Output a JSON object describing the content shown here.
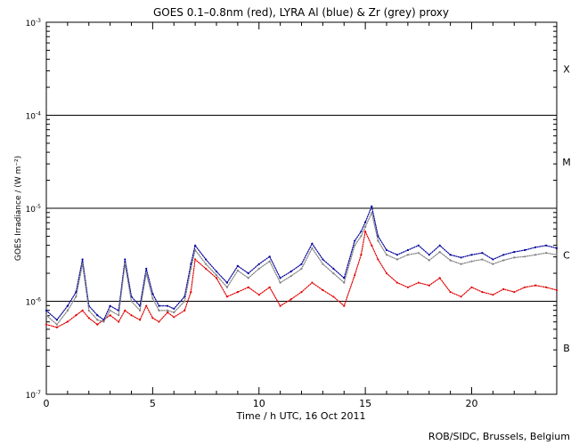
{
  "chart_data": {
    "type": "line",
    "title": "GOES 0.1–0.8nm (red), LYRA Al (blue) & Zr (grey) proxy",
    "xlabel": "Time / h UTC, 16 Oct 2011",
    "ylabel": "GOES Irradiance / (W m⁻²)",
    "credit": "ROB/SIDC, Brussels, Belgium",
    "xlim": [
      0,
      24
    ],
    "ylim_log10": [
      -7,
      -3
    ],
    "y_scale": "log",
    "grid": false,
    "x_ticks": [
      {
        "v": 0,
        "label": "0"
      },
      {
        "v": 5,
        "label": "5"
      },
      {
        "v": 10,
        "label": "10"
      },
      {
        "v": 15,
        "label": "15"
      },
      {
        "v": 20,
        "label": "20"
      }
    ],
    "y_ticks": [
      {
        "e": -7,
        "base": "10",
        "exp": "-7"
      },
      {
        "e": -6,
        "base": "10",
        "exp": "-6"
      },
      {
        "e": -5,
        "base": "10",
        "exp": "-5"
      },
      {
        "e": -4,
        "base": "10",
        "exp": "-4"
      },
      {
        "e": -3,
        "base": "10",
        "exp": "-3"
      }
    ],
    "class_lines": [
      -6,
      -5,
      -4
    ],
    "class_labels": [
      {
        "label": "X",
        "logy": -3.5
      },
      {
        "label": "M",
        "logy": -4.5
      },
      {
        "label": "C",
        "logy": -5.5
      },
      {
        "label": "B",
        "logy": -6.5
      }
    ],
    "series": [
      {
        "color": "#e00000",
        "x": [
          0,
          0.5,
          1,
          1.4,
          1.7,
          2,
          2.4,
          2.7,
          3,
          3.4,
          3.7,
          4,
          4.4,
          4.7,
          5,
          5.3,
          5.7,
          6,
          6.5,
          6.8,
          7,
          7.5,
          8,
          8.5,
          9,
          9.5,
          10,
          10.5,
          11,
          11.5,
          12,
          12.5,
          13,
          13.5,
          14,
          14.5,
          14.8,
          15,
          15.3,
          15.6,
          16,
          16.5,
          17,
          17.5,
          18,
          18.5,
          19,
          19.5,
          20,
          20.5,
          21,
          21.5,
          22,
          22.5,
          23,
          23.5,
          24
        ],
        "logy": [
          -6.25,
          -6.28,
          -6.22,
          -6.15,
          -6.1,
          -6.18,
          -6.25,
          -6.2,
          -6.15,
          -6.22,
          -6.1,
          -6.15,
          -6.2,
          -6.05,
          -6.18,
          -6.22,
          -6.12,
          -6.17,
          -6.1,
          -5.9,
          -5.55,
          -5.65,
          -5.75,
          -5.95,
          -5.9,
          -5.85,
          -5.93,
          -5.85,
          -6.05,
          -5.98,
          -5.9,
          -5.8,
          -5.88,
          -5.95,
          -6.05,
          -5.72,
          -5.5,
          -5.25,
          -5.4,
          -5.55,
          -5.7,
          -5.8,
          -5.85,
          -5.8,
          -5.83,
          -5.75,
          -5.9,
          -5.95,
          -5.85,
          -5.9,
          -5.93,
          -5.87,
          -5.9,
          -5.85,
          -5.83,
          -5.85,
          -5.88
        ]
      },
      {
        "color": "#00009a",
        "x": [
          0,
          0.5,
          1,
          1.4,
          1.7,
          2,
          2.4,
          2.7,
          3,
          3.4,
          3.7,
          4,
          4.4,
          4.7,
          5,
          5.3,
          5.7,
          6,
          6.5,
          6.8,
          7,
          7.5,
          8,
          8.5,
          9,
          9.5,
          10,
          10.5,
          11,
          11.5,
          12,
          12.5,
          13,
          13.5,
          14,
          14.5,
          14.8,
          15,
          15.3,
          15.6,
          16,
          16.5,
          17,
          17.5,
          18,
          18.5,
          19,
          19.5,
          20,
          20.5,
          21,
          21.5,
          22,
          22.5,
          23,
          23.5,
          24
        ],
        "logy": [
          -6.1,
          -6.2,
          -6.05,
          -5.9,
          -5.55,
          -6.05,
          -6.15,
          -6.2,
          -6.05,
          -6.1,
          -5.55,
          -5.95,
          -6.05,
          -5.65,
          -5.92,
          -6.05,
          -6.05,
          -6.08,
          -5.95,
          -5.6,
          -5.4,
          -5.55,
          -5.68,
          -5.8,
          -5.62,
          -5.7,
          -5.6,
          -5.52,
          -5.75,
          -5.68,
          -5.6,
          -5.38,
          -5.55,
          -5.65,
          -5.75,
          -5.35,
          -5.25,
          -5.15,
          -4.98,
          -5.3,
          -5.45,
          -5.5,
          -5.45,
          -5.4,
          -5.5,
          -5.4,
          -5.5,
          -5.53,
          -5.5,
          -5.48,
          -5.55,
          -5.5,
          -5.47,
          -5.45,
          -5.42,
          -5.4,
          -5.43
        ]
      },
      {
        "color": "#808080",
        "x": [
          0,
          0.5,
          1,
          1.4,
          1.7,
          2,
          2.4,
          2.7,
          3,
          3.4,
          3.7,
          4,
          4.4,
          4.7,
          5,
          5.3,
          5.7,
          6,
          6.5,
          6.8,
          7,
          7.5,
          8,
          8.5,
          9,
          9.5,
          10,
          10.5,
          11,
          11.5,
          12,
          12.5,
          13,
          13.5,
          14,
          14.5,
          14.8,
          15,
          15.3,
          15.6,
          16,
          16.5,
          17,
          17.5,
          18,
          18.5,
          19,
          19.5,
          20,
          20.5,
          21,
          21.5,
          22,
          22.5,
          23,
          23.5,
          24
        ],
        "logy": [
          -6.15,
          -6.25,
          -6.1,
          -5.95,
          -5.6,
          -6.1,
          -6.2,
          -6.22,
          -6.1,
          -6.15,
          -5.6,
          -6.0,
          -6.1,
          -5.7,
          -5.97,
          -6.1,
          -6.1,
          -6.12,
          -6.0,
          -5.65,
          -5.45,
          -5.6,
          -5.72,
          -5.85,
          -5.67,
          -5.75,
          -5.65,
          -5.57,
          -5.8,
          -5.73,
          -5.65,
          -5.43,
          -5.6,
          -5.7,
          -5.8,
          -5.4,
          -5.3,
          -5.2,
          -5.05,
          -5.35,
          -5.5,
          -5.55,
          -5.5,
          -5.48,
          -5.56,
          -5.47,
          -5.56,
          -5.6,
          -5.57,
          -5.55,
          -5.6,
          -5.56,
          -5.53,
          -5.52,
          -5.5,
          -5.48,
          -5.5
        ]
      }
    ]
  }
}
